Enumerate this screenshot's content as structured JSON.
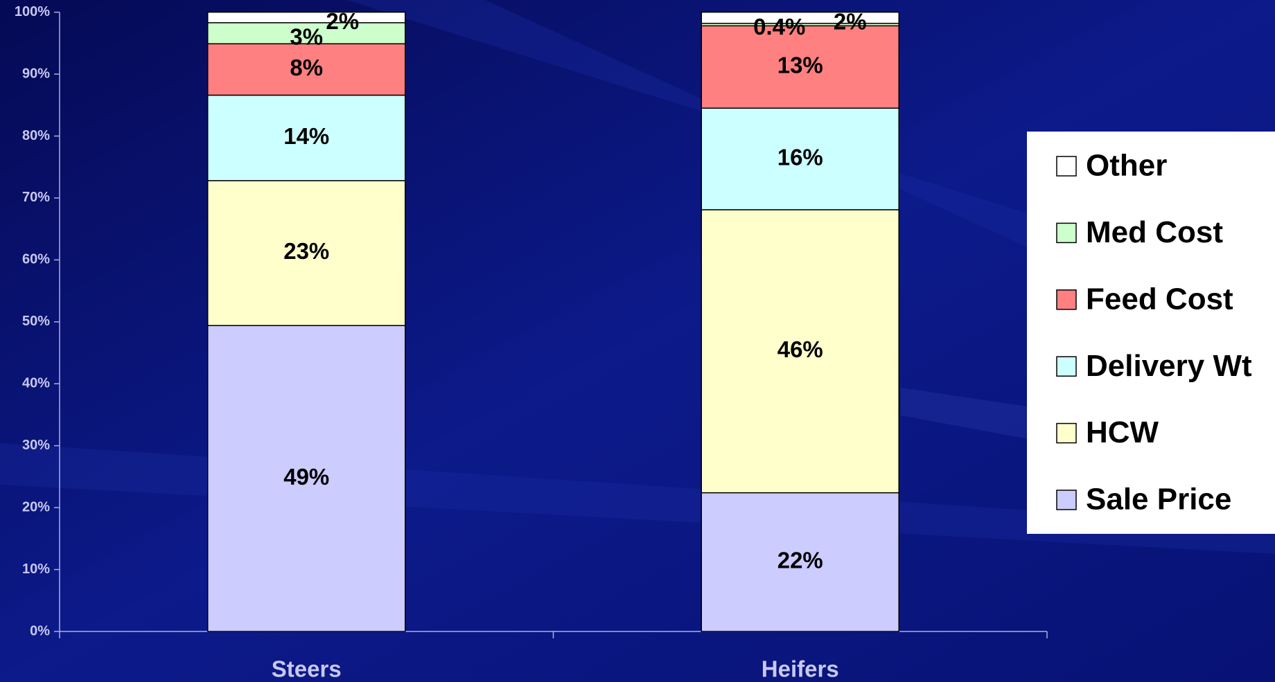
{
  "chart_data": {
    "type": "stacked_bar",
    "categories": [
      "Steers",
      "Heifers"
    ],
    "series": [
      {
        "name": "Sale Price",
        "color": "#ccccff",
        "values": [
          49.4,
          22.4
        ],
        "value_labels": [
          "49%",
          "22%"
        ]
      },
      {
        "name": "HCW",
        "color": "#ffffcc",
        "values": [
          23.4,
          45.7
        ],
        "value_labels": [
          "23%",
          "46%"
        ]
      },
      {
        "name": "Delivery Wt",
        "color": "#ccffff",
        "values": [
          13.8,
          16.4
        ],
        "value_labels": [
          "14%",
          "16%"
        ]
      },
      {
        "name": "Feed Cost",
        "color": "#ff8080",
        "values": [
          8.3,
          13.3
        ],
        "value_labels": [
          "8%",
          "13%"
        ]
      },
      {
        "name": "Med Cost",
        "color": "#ccffcc",
        "values": [
          3.4,
          0.4
        ],
        "value_labels": [
          "3%",
          "0.4%"
        ]
      },
      {
        "name": "Other",
        "color": "#ffffff",
        "values": [
          1.7,
          1.8
        ],
        "value_labels": [
          "2%",
          "2%"
        ]
      }
    ],
    "ylim": [
      0,
      100
    ],
    "yticks": [
      {
        "value": 0,
        "label": "0%"
      },
      {
        "value": 10,
        "label": "10%"
      },
      {
        "value": 20,
        "label": "20%"
      },
      {
        "value": 30,
        "label": "30%"
      },
      {
        "value": 40,
        "label": "40%"
      },
      {
        "value": 50,
        "label": "50%"
      },
      {
        "value": 60,
        "label": "60%"
      },
      {
        "value": 70,
        "label": "70%"
      },
      {
        "value": 80,
        "label": "80%"
      },
      {
        "value": 90,
        "label": "90%"
      },
      {
        "value": 100,
        "label": "100%"
      }
    ],
    "legend": "right"
  }
}
